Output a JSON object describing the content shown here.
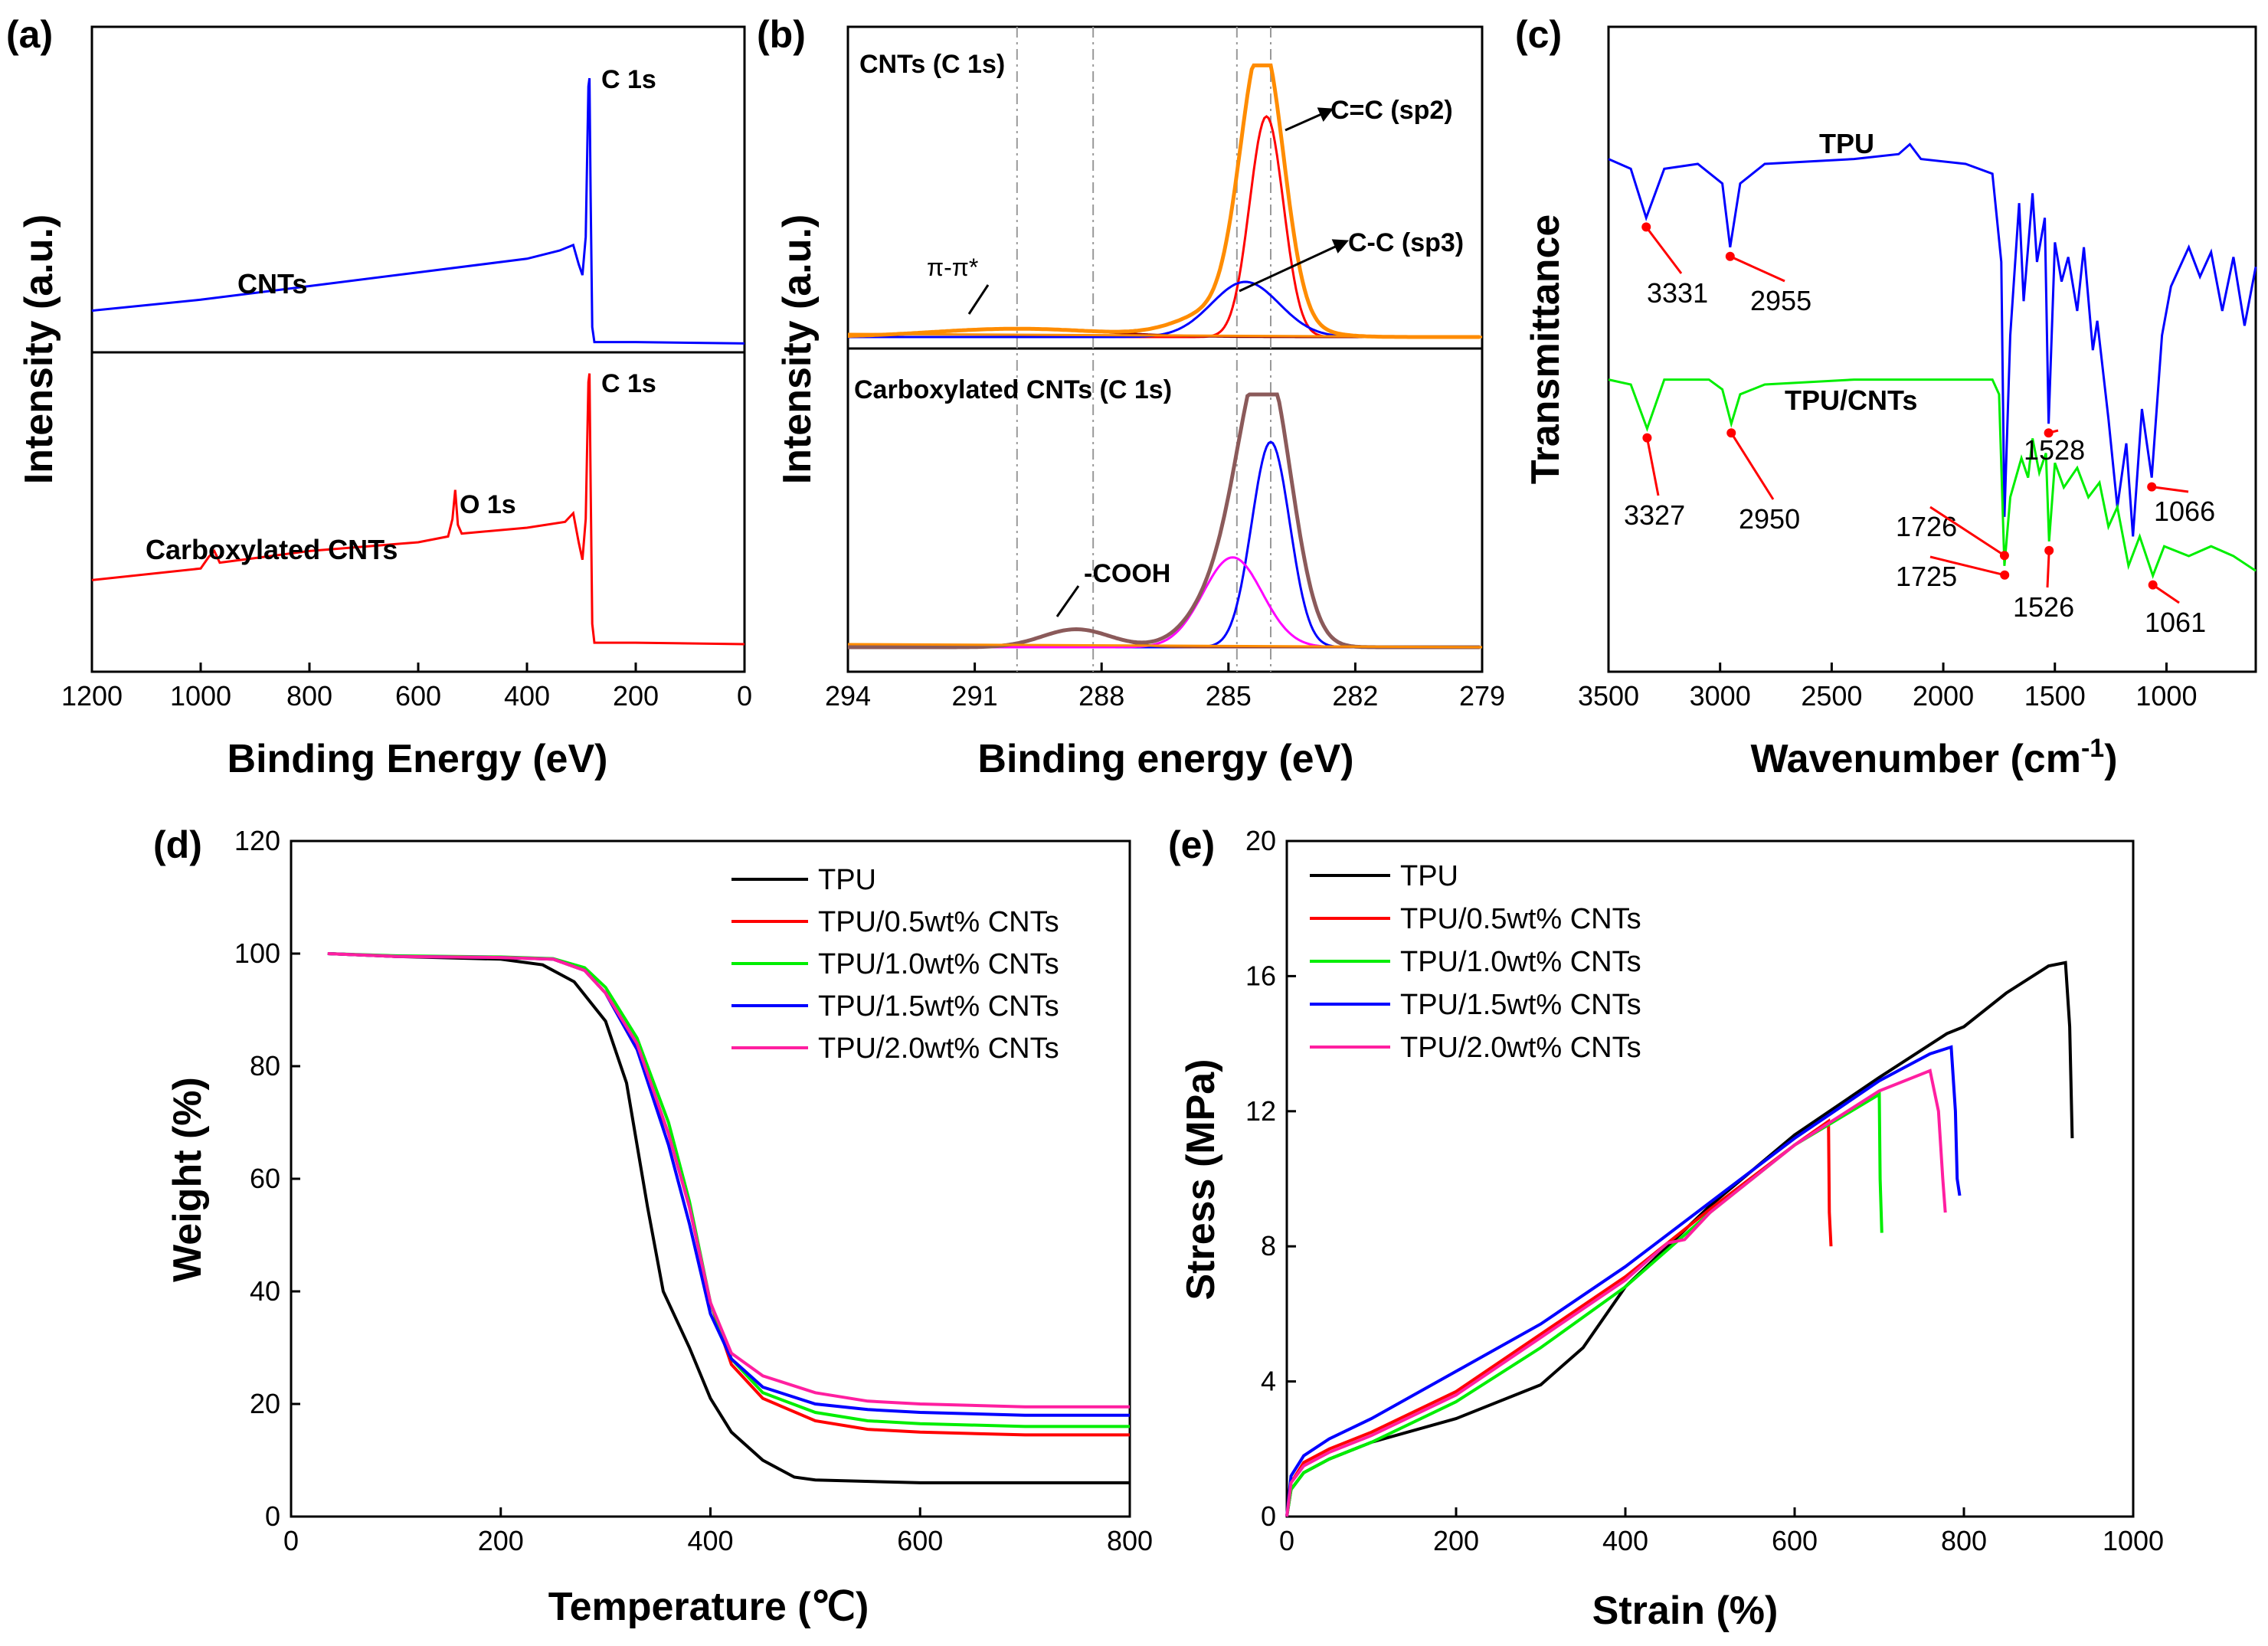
{
  "chart_data": [
    {
      "type": "line",
      "panel_label": "(a)",
      "xlabel": "Binding Energy (eV)",
      "ylabel": "Intensity (a.u.)",
      "xlim": [
        1200,
        0
      ],
      "xticks": [
        "1200",
        "1000",
        "800",
        "600",
        "400",
        "200",
        "0"
      ],
      "series": [
        {
          "name": "CNTs",
          "color": "#0000ff",
          "label": "CNTs",
          "peak_labels": [
            {
              "text": "C 1s",
              "x": 284
            }
          ],
          "x": [
            1200,
            1000,
            800,
            600,
            400,
            340,
            315,
            305,
            298,
            292,
            287,
            285,
            283,
            280,
            276,
            200,
            0
          ],
          "y": [
            0.13,
            0.17,
            0.22,
            0.27,
            0.32,
            0.35,
            0.37,
            0.3,
            0.26,
            0.4,
            0.95,
            0.98,
            0.55,
            0.07,
            0.015,
            0.015,
            0.01
          ]
        },
        {
          "name": "Carboxylated CNTs",
          "color": "#ff0000",
          "label": "Carboxylated CNTs",
          "peak_labels": [
            {
              "text": "C 1s",
              "x": 284
            },
            {
              "text": "O 1s",
              "x": 532
            }
          ],
          "x": [
            1200,
            1000,
            985,
            975,
            965,
            800,
            600,
            545,
            537,
            532,
            527,
            520,
            400,
            330,
            315,
            305,
            298,
            292,
            287,
            285,
            283,
            280,
            276,
            200,
            0
          ],
          "y": [
            0.27,
            0.31,
            0.35,
            0.37,
            0.33,
            0.37,
            0.4,
            0.42,
            0.48,
            0.58,
            0.46,
            0.43,
            0.45,
            0.47,
            0.5,
            0.4,
            0.34,
            0.48,
            0.95,
            0.98,
            0.6,
            0.12,
            0.055,
            0.055,
            0.05
          ]
        }
      ]
    },
    {
      "type": "line",
      "panel_label": "(b)",
      "xlabel": "Binding energy (eV)",
      "ylabel": "Intensity (a.u.)",
      "xlim": [
        294,
        279
      ],
      "xticks": [
        "294",
        "291",
        "288",
        "285",
        "282",
        "279"
      ],
      "subplots": [
        {
          "title": "CNTs (C 1s)",
          "annotations": [
            "C=C (sp2)",
            "C-C (sp3)",
            "π-π*"
          ],
          "components": [
            {
              "name": "C=C (sp2)",
              "color": "#ff0000",
              "center": 284.1,
              "height": 0.8,
              "width": 0.4
            },
            {
              "name": "C-C (sp3)",
              "color": "#0000ff",
              "center": 284.6,
              "height": 0.2,
              "width": 0.8
            },
            {
              "name": "π-π*",
              "color": "#8b0000",
              "center": 290.0,
              "height": 0.03,
              "width": 2.0
            },
            {
              "name": "Envelope",
              "color": "#ff8c00",
              "center": 284.2,
              "height": 0.97,
              "width": 0.5
            }
          ]
        },
        {
          "title": "Carboxylated CNTs (C 1s)",
          "annotations": [
            "-COOH"
          ],
          "components": [
            {
              "name": "C=C (sp2)",
              "color": "#0000ff",
              "center": 284.0,
              "height": 0.8,
              "width": 0.45
            },
            {
              "name": "C-C (sp3)",
              "color": "#ff00ff",
              "center": 284.9,
              "height": 0.35,
              "width": 0.7
            },
            {
              "name": "-COOH",
              "color": "#8b3a3a",
              "center": 288.6,
              "height": 0.07,
              "width": 0.8
            },
            {
              "name": "Envelope",
              "color": "#8b5a5a",
              "center": 284.1,
              "height": 0.96,
              "width": 0.6
            }
          ]
        }
      ],
      "reference_lines_eV": [
        290.0,
        288.2,
        284.8,
        284.0
      ]
    },
    {
      "type": "line",
      "panel_label": "(c)",
      "xlabel": "Wavenumber (cm-1)",
      "ylabel": "Transmittance",
      "xlim": [
        3500,
        600
      ],
      "xticks": [
        "3500",
        "3000",
        "2500",
        "2000",
        "1500",
        "1000"
      ],
      "series": [
        {
          "name": "TPU",
          "color": "#0000ff",
          "label": "TPU",
          "peaks": [
            "3331",
            "2955",
            "1528",
            "1066"
          ],
          "x": [
            3500,
            3400,
            3331,
            3250,
            3100,
            2990,
            2955,
            2910,
            2800,
            2400,
            2200,
            2150,
            2100,
            1900,
            1780,
            1740,
            1726,
            1700,
            1660,
            1640,
            1600,
            1580,
            1545,
            1528,
            1500,
            1470,
            1440,
            1400,
            1370,
            1330,
            1310,
            1260,
            1220,
            1180,
            1150,
            1110,
            1066,
            1020,
            980,
            900,
            850,
            800,
            750,
            700,
            650,
            600
          ],
          "y": [
            0.91,
            0.89,
            0.79,
            0.89,
            0.9,
            0.86,
            0.73,
            0.86,
            0.9,
            0.91,
            0.92,
            0.94,
            0.91,
            0.9,
            0.88,
            0.7,
            0.18,
            0.55,
            0.82,
            0.62,
            0.84,
            0.7,
            0.79,
            0.37,
            0.74,
            0.66,
            0.71,
            0.6,
            0.73,
            0.52,
            0.58,
            0.38,
            0.2,
            0.33,
            0.14,
            0.4,
            0.26,
            0.55,
            0.65,
            0.73,
            0.67,
            0.72,
            0.6,
            0.71,
            0.57,
            0.69
          ]
        },
        {
          "name": "TPU/CNTs",
          "color": "#00ee00",
          "label": "TPU/CNTs",
          "peaks": [
            "3327",
            "2950",
            "1726",
            "1725",
            "1526",
            "1061"
          ],
          "x": [
            3500,
            3400,
            3327,
            3250,
            3050,
            2990,
            2950,
            2910,
            2800,
            2400,
            2000,
            1780,
            1750,
            1726,
            1700,
            1650,
            1620,
            1600,
            1570,
            1540,
            1526,
            1500,
            1460,
            1400,
            1350,
            1300,
            1260,
            1220,
            1170,
            1120,
            1061,
            1010,
            900,
            800,
            700,
            600
          ],
          "y": [
            0.46,
            0.45,
            0.36,
            0.46,
            0.46,
            0.44,
            0.37,
            0.43,
            0.45,
            0.46,
            0.46,
            0.46,
            0.43,
            0.08,
            0.22,
            0.3,
            0.26,
            0.34,
            0.27,
            0.31,
            0.13,
            0.29,
            0.24,
            0.28,
            0.22,
            0.25,
            0.16,
            0.2,
            0.08,
            0.14,
            0.06,
            0.12,
            0.1,
            0.12,
            0.1,
            0.07
          ]
        }
      ]
    },
    {
      "type": "line",
      "panel_label": "(d)",
      "xlabel": "Temperature (℃)",
      "ylabel": "Weight (%)",
      "xlim": [
        0,
        800
      ],
      "ylim": [
        0,
        120
      ],
      "xticks": [
        "0",
        "200",
        "400",
        "600",
        "800"
      ],
      "yticks": [
        "0",
        "20",
        "40",
        "60",
        "80",
        "100",
        "120"
      ],
      "legend": "top-right",
      "series": [
        {
          "name": "TPU",
          "color": "#000000",
          "x": [
            35,
            100,
            200,
            240,
            270,
            300,
            320,
            340,
            355,
            380,
            400,
            420,
            450,
            480,
            500,
            600,
            700,
            800
          ],
          "y": [
            100,
            99.5,
            99,
            98,
            95,
            88,
            77,
            55,
            40,
            30,
            21,
            15,
            10,
            7,
            6.5,
            6,
            6,
            6
          ]
        },
        {
          "name": "TPU/0.5wt% CNTs",
          "color": "#ff0000",
          "x": [
            35,
            100,
            200,
            250,
            280,
            300,
            330,
            360,
            380,
            400,
            420,
            450,
            500,
            550,
            600,
            700,
            800
          ],
          "y": [
            100,
            99.5,
            99.3,
            99,
            97,
            93,
            83,
            68,
            55,
            38,
            27,
            21,
            17,
            15.5,
            15,
            14.5,
            14.5
          ]
        },
        {
          "name": "TPU/1.0wt% CNTs",
          "color": "#00ee00",
          "x": [
            35,
            100,
            200,
            250,
            280,
            300,
            330,
            360,
            380,
            400,
            420,
            450,
            500,
            550,
            600,
            700,
            800
          ],
          "y": [
            100,
            99.6,
            99.4,
            99.1,
            97.5,
            94,
            85,
            70,
            56,
            38,
            28,
            22,
            18.5,
            17,
            16.5,
            16,
            16
          ]
        },
        {
          "name": "TPU/1.5wt% CNTs",
          "color": "#0000ff",
          "x": [
            35,
            100,
            200,
            250,
            280,
            300,
            330,
            360,
            380,
            400,
            420,
            450,
            500,
            550,
            600,
            700,
            800
          ],
          "y": [
            100,
            99.5,
            99.3,
            99,
            97,
            93,
            83,
            66,
            52,
            36,
            28,
            23,
            20,
            19,
            18.5,
            18,
            18
          ]
        },
        {
          "name": "TPU/2.0wt% CNTs",
          "color": "#ff1fa0",
          "x": [
            35,
            100,
            200,
            250,
            280,
            300,
            330,
            360,
            380,
            400,
            420,
            450,
            500,
            550,
            600,
            700,
            800
          ],
          "y": [
            100,
            99.5,
            99.3,
            99,
            97,
            93,
            84,
            68,
            55,
            38,
            29,
            25,
            22,
            20.5,
            20,
            19.5,
            19.5
          ]
        }
      ]
    },
    {
      "type": "line",
      "panel_label": "(e)",
      "xlabel": "Strain (%)",
      "ylabel": "Stress (MPa)",
      "xlim": [
        0,
        1000
      ],
      "ylim": [
        0,
        20
      ],
      "xticks": [
        "0",
        "200",
        "400",
        "600",
        "800",
        "1000"
      ],
      "yticks": [
        "0",
        "4",
        "8",
        "12",
        "16",
        "20"
      ],
      "legend": "top-left",
      "series": [
        {
          "name": "TPU",
          "color": "#000000",
          "x": [
            0,
            5,
            20,
            50,
            100,
            200,
            300,
            350,
            400,
            500,
            600,
            700,
            780,
            800,
            850,
            900,
            920,
            925,
            928
          ],
          "y": [
            0,
            0.8,
            1.3,
            1.7,
            2.2,
            2.9,
            3.9,
            5.0,
            6.8,
            9.2,
            11.3,
            13.0,
            14.3,
            14.5,
            15.5,
            16.3,
            16.4,
            14.5,
            11.2
          ]
        },
        {
          "name": "TPU/0.5wt% CNTs",
          "color": "#ff0000",
          "x": [
            0,
            5,
            20,
            50,
            100,
            200,
            300,
            400,
            500,
            600,
            640,
            641,
            643
          ],
          "y": [
            0,
            1.0,
            1.6,
            2.0,
            2.5,
            3.7,
            5.4,
            7.1,
            9.1,
            11.0,
            11.7,
            9.0,
            8.0
          ]
        },
        {
          "name": "TPU/1.0wt% CNTs",
          "color": "#00ee00",
          "x": [
            0,
            5,
            20,
            50,
            100,
            200,
            300,
            400,
            500,
            600,
            700,
            701,
            703
          ],
          "y": [
            0,
            0.8,
            1.3,
            1.7,
            2.2,
            3.4,
            5.0,
            6.8,
            9.0,
            11.0,
            12.5,
            10.0,
            8.4
          ]
        },
        {
          "name": "TPU/1.5wt% CNTs",
          "color": "#0000ff",
          "x": [
            0,
            5,
            20,
            50,
            100,
            200,
            300,
            400,
            500,
            600,
            700,
            760,
            785,
            790,
            792,
            795
          ],
          "y": [
            0,
            1.2,
            1.8,
            2.3,
            2.9,
            4.3,
            5.7,
            7.4,
            9.3,
            11.2,
            12.9,
            13.7,
            13.9,
            12.0,
            10.0,
            9.5
          ]
        },
        {
          "name": "TPU/2.0wt% CNTs",
          "color": "#ff1fa0",
          "x": [
            0,
            5,
            20,
            50,
            100,
            200,
            300,
            400,
            450,
            470,
            500,
            600,
            700,
            760,
            770,
            775,
            778
          ],
          "y": [
            0,
            1.0,
            1.5,
            1.9,
            2.4,
            3.6,
            5.3,
            7.0,
            8.1,
            8.2,
            9.0,
            11.0,
            12.6,
            13.2,
            12.0,
            10.0,
            9.0
          ]
        }
      ]
    }
  ]
}
